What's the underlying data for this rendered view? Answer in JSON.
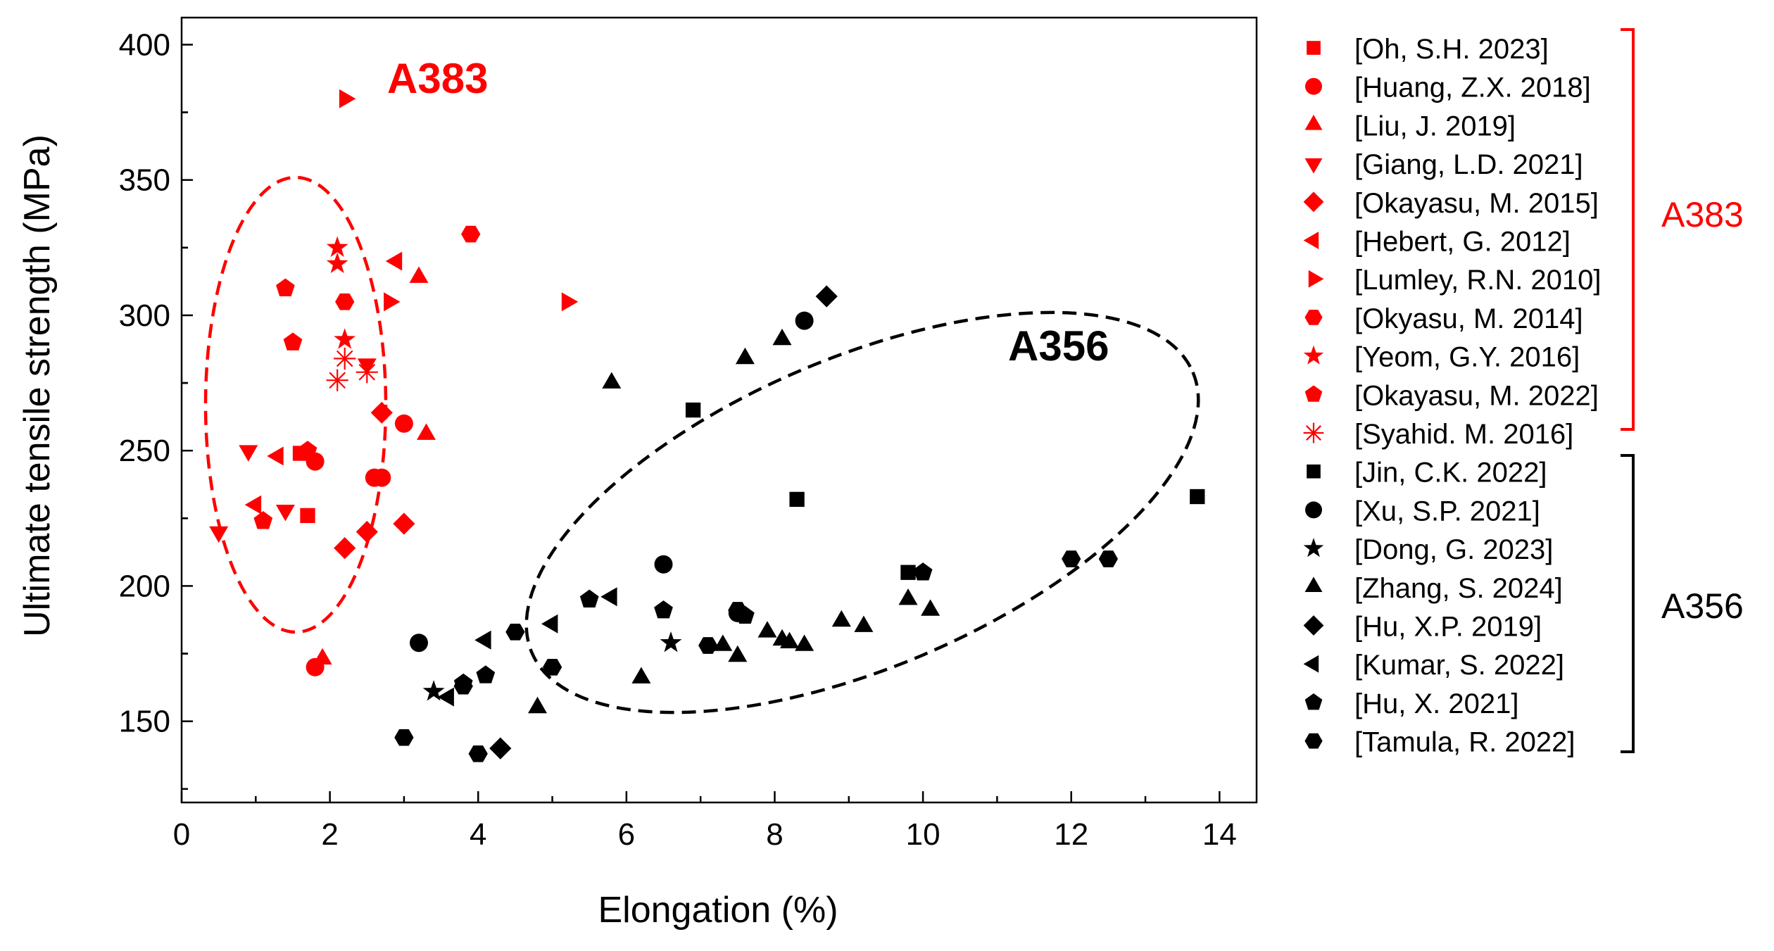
{
  "chart_data": {
    "type": "scatter",
    "title": "",
    "xlabel": "Elongation (%)",
    "ylabel": "Ultimate tensile strength (MPa)",
    "xlim": [
      0,
      14.5
    ],
    "ylim": [
      120,
      410
    ],
    "xticks": [
      "0",
      "2",
      "4",
      "6",
      "8",
      "10",
      "12",
      "14"
    ],
    "yticks": [
      "150",
      "200",
      "250",
      "300",
      "350",
      "400"
    ],
    "grid": false,
    "legend_position": "right",
    "annotations": [
      {
        "text": "A383",
        "color": "#ff0000"
      },
      {
        "text": "A356",
        "color": "#000000"
      }
    ],
    "group_labels": [
      {
        "text": "A383",
        "color": "#ff0000"
      },
      {
        "text": "A356",
        "color": "#000000"
      }
    ],
    "colors": {
      "a383": "#ff0000",
      "a356": "#000000"
    },
    "series": [
      {
        "name": "[Oh, S.H. 2023]",
        "group": "a383",
        "marker": "square",
        "x": [
          1.6,
          1.7
        ],
        "y": [
          249,
          226
        ]
      },
      {
        "name": "[Huang, Z.X. 2018]",
        "group": "a383",
        "marker": "circle",
        "x": [
          1.8,
          2.6,
          2.7,
          3.0,
          1.8
        ],
        "y": [
          246,
          240,
          240,
          260,
          170
        ]
      },
      {
        "name": "[Liu, J. 2019]",
        "group": "a383",
        "marker": "triangle-up",
        "x": [
          1.9,
          3.2,
          3.3
        ],
        "y": [
          173,
          314,
          256
        ]
      },
      {
        "name": "[Giang, L.D. 2021]",
        "group": "a383",
        "marker": "triangle-down",
        "x": [
          0.5,
          0.9,
          1.4,
          2.5
        ],
        "y": [
          220,
          250,
          228,
          282
        ]
      },
      {
        "name": "[Okayasu, M. 2015]",
        "group": "a383",
        "marker": "diamond",
        "x": [
          2.2,
          2.5,
          2.7,
          3.0
        ],
        "y": [
          214,
          220,
          264,
          223
        ]
      },
      {
        "name": "[Hebert, G. 2012]",
        "group": "a383",
        "marker": "triangle-left",
        "x": [
          1.0,
          1.3,
          2.9
        ],
        "y": [
          230,
          248,
          320
        ]
      },
      {
        "name": "[Lumley, R.N. 2010]",
        "group": "a383",
        "marker": "triangle-right",
        "x": [
          2.2,
          2.8,
          5.2
        ],
        "y": [
          380,
          305,
          305
        ]
      },
      {
        "name": "[Okyasu, M. 2014]",
        "group": "a383",
        "marker": "hexagon",
        "x": [
          2.2,
          3.9
        ],
        "y": [
          305,
          330
        ]
      },
      {
        "name": "[Yeom, G.Y. 2016]",
        "group": "a383",
        "marker": "star",
        "x": [
          2.1,
          2.1,
          2.2
        ],
        "y": [
          325,
          319,
          291
        ]
      },
      {
        "name": "[Okayasu, M. 2022]",
        "group": "a383",
        "marker": "pentagon",
        "x": [
          1.1,
          1.4,
          1.5,
          1.7
        ],
        "y": [
          224,
          310,
          290,
          250
        ]
      },
      {
        "name": "[Syahid. M. 2016]",
        "group": "a383",
        "marker": "asterisk",
        "x": [
          2.1,
          2.2,
          2.5
        ],
        "y": [
          276,
          284,
          279
        ]
      },
      {
        "name": "[Jin, C.K. 2022]",
        "group": "a356",
        "marker": "square",
        "x": [
          6.9,
          8.3,
          9.8,
          13.7
        ],
        "y": [
          265,
          232,
          205,
          233
        ]
      },
      {
        "name": "[Xu, S.P. 2021]",
        "group": "a356",
        "marker": "circle",
        "x": [
          3.2,
          6.5,
          8.4,
          7.5
        ],
        "y": [
          179,
          208,
          298,
          190
        ]
      },
      {
        "name": "[Dong, G. 2023]",
        "group": "a356",
        "marker": "star",
        "x": [
          3.4,
          6.6
        ],
        "y": [
          161,
          179
        ]
      },
      {
        "name": "[Zhang, S. 2024]",
        "group": "a356",
        "marker": "triangle-up",
        "x": [
          4.8,
          5.8,
          6.2,
          7.3,
          7.5,
          7.6,
          7.9,
          8.1,
          8.1,
          8.2,
          8.4,
          8.9,
          9.2,
          9.8,
          10.1
        ],
        "y": [
          155,
          275,
          166,
          178,
          174,
          284,
          183,
          180,
          291,
          179,
          178,
          187,
          185,
          195,
          191
        ]
      },
      {
        "name": "[Hu, X.P. 2019]",
        "group": "a356",
        "marker": "diamond",
        "x": [
          4.3,
          8.7
        ],
        "y": [
          140,
          307
        ]
      },
      {
        "name": "[Kumar, S. 2022]",
        "group": "a356",
        "marker": "triangle-left",
        "x": [
          3.6,
          4.1,
          5.0,
          5.8
        ],
        "y": [
          159,
          180,
          186,
          196
        ]
      },
      {
        "name": "[Hu, X. 2021]",
        "group": "a356",
        "marker": "pentagon",
        "x": [
          3.8,
          4.1,
          5.5,
          6.5,
          7.6,
          10.0
        ],
        "y": [
          164,
          167,
          195,
          191,
          189,
          205
        ]
      },
      {
        "name": "[Tamula, R. 2022]",
        "group": "a356",
        "marker": "hexagon",
        "x": [
          3.0,
          3.8,
          4.0,
          4.5,
          5.0,
          7.1,
          7.5,
          12.0,
          12.5
        ],
        "y": [
          144,
          163,
          138,
          183,
          170,
          178,
          191,
          210,
          210
        ]
      }
    ]
  }
}
